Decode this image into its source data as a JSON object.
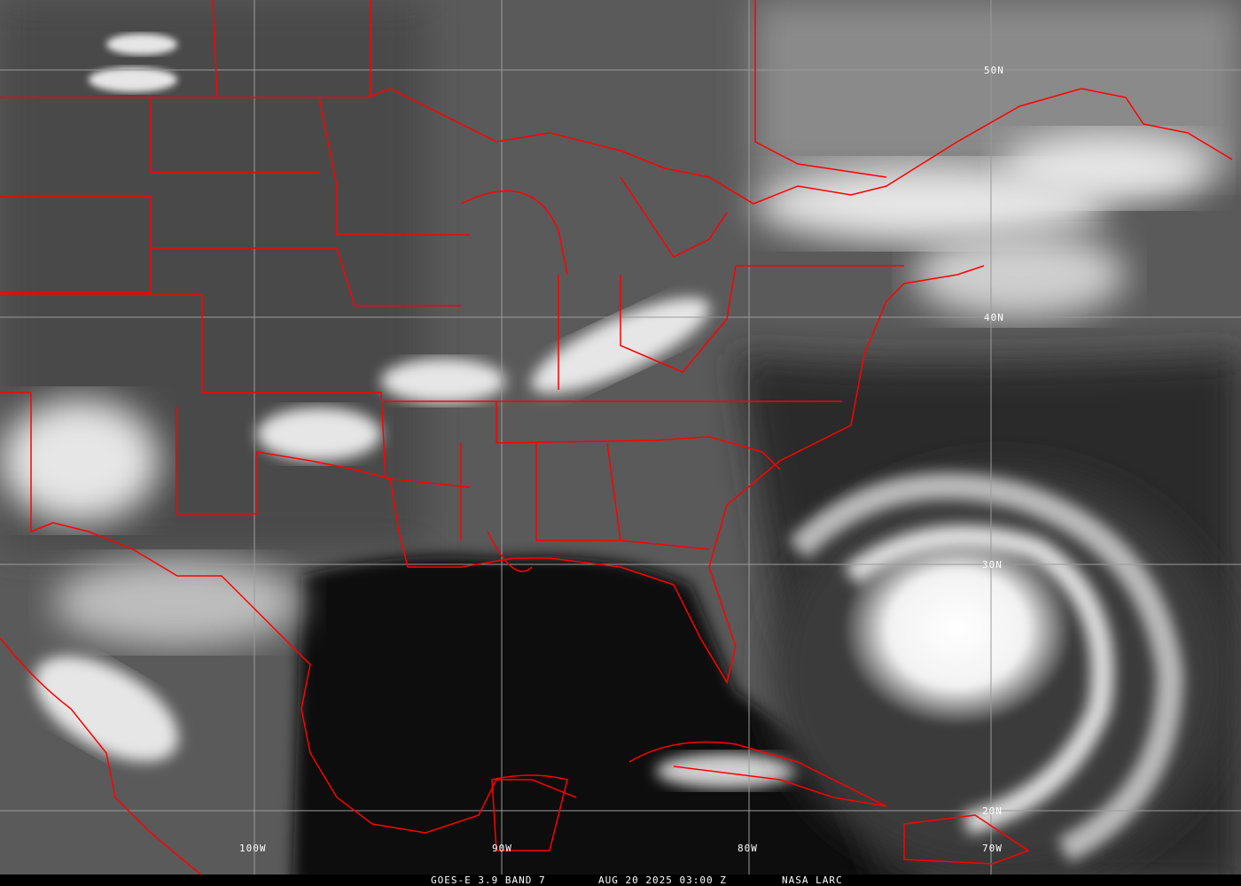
{
  "image": {
    "sensor": "GOES-E 3.9 BAND 7",
    "datetime": "AUG 20 2025 03:00 Z",
    "credit": "NASA LARC",
    "overlay_color": "#ff0000",
    "grid_color": "#9a9a9a"
  },
  "grid": {
    "latitudes": [
      "50N",
      "40N",
      "30N",
      "20N"
    ],
    "longitudes": [
      "100W",
      "90W",
      "80W",
      "70W"
    ]
  }
}
